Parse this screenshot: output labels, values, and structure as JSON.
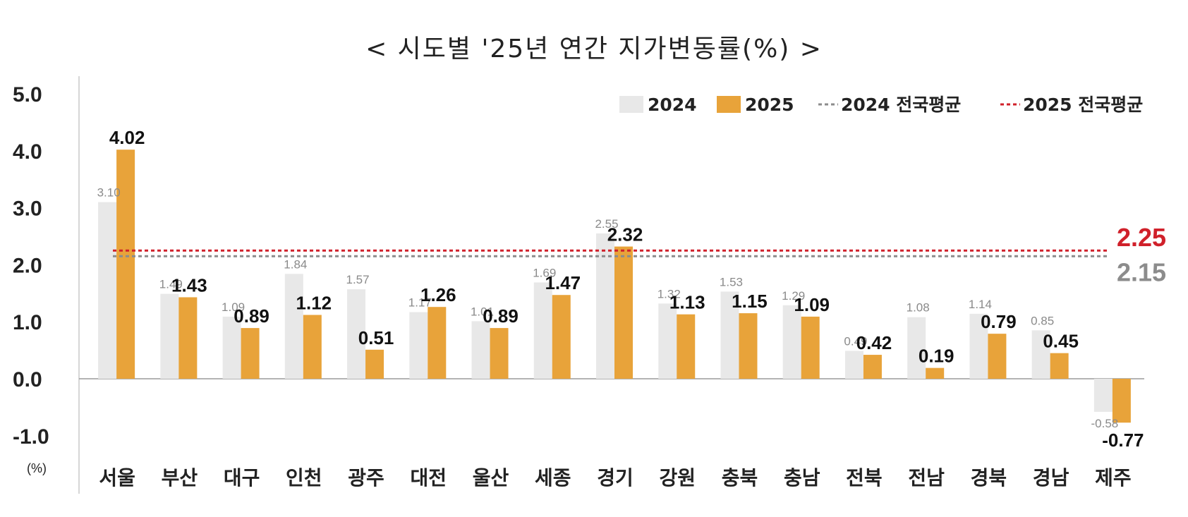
{
  "chart_data": {
    "type": "bar",
    "title": "< 시도별 '25년 연간 지가변동률(%) >",
    "unit_label": "(%)",
    "categories": [
      "서울",
      "부산",
      "대구",
      "인천",
      "광주",
      "대전",
      "울산",
      "세종",
      "경기",
      "강원",
      "충북",
      "충남",
      "전북",
      "전남",
      "경북",
      "경남",
      "제주"
    ],
    "series": [
      {
        "name": "2024",
        "color": "#e8e8e8",
        "values": [
          3.1,
          1.49,
          1.09,
          1.84,
          1.57,
          1.17,
          1.01,
          1.69,
          2.55,
          1.32,
          1.53,
          1.29,
          0.49,
          1.08,
          1.14,
          0.85,
          -0.58
        ],
        "labels": [
          "3.10",
          "1.49",
          "1.09",
          "1.84",
          "1.57",
          "1.17",
          "1.01",
          "1.69",
          "2.55",
          "1.32",
          "1.53",
          "1.29",
          "0.49",
          "1.08",
          "1.14",
          "0.85",
          "-0.58"
        ]
      },
      {
        "name": "2025",
        "color": "#e8a33a",
        "values": [
          4.02,
          1.43,
          0.89,
          1.12,
          0.51,
          1.26,
          0.89,
          1.47,
          2.32,
          1.13,
          1.15,
          1.09,
          0.42,
          0.19,
          0.79,
          0.45,
          -0.77
        ],
        "labels": [
          "4.02",
          "1.43",
          "0.89",
          "1.12",
          "0.51",
          "1.26",
          "0.89",
          "1.47",
          "2.32",
          "1.13",
          "1.15",
          "1.09",
          "0.42",
          "0.19",
          "0.79",
          "0.45",
          "-0.77"
        ]
      }
    ],
    "averages": [
      {
        "name": "2024 전국평균",
        "value": 2.15,
        "label": "2.15",
        "color": "#8c8c8c"
      },
      {
        "name": "2025 전국평균",
        "value": 2.25,
        "label": "2.25",
        "color": "#d0202a"
      }
    ],
    "yticks": [
      "5.0",
      "4.0",
      "3.0",
      "2.0",
      "1.0",
      "0.0",
      "-1.0"
    ],
    "ylim": [
      -1.0,
      5.0
    ],
    "grid": false,
    "legend_position": "top-right"
  }
}
